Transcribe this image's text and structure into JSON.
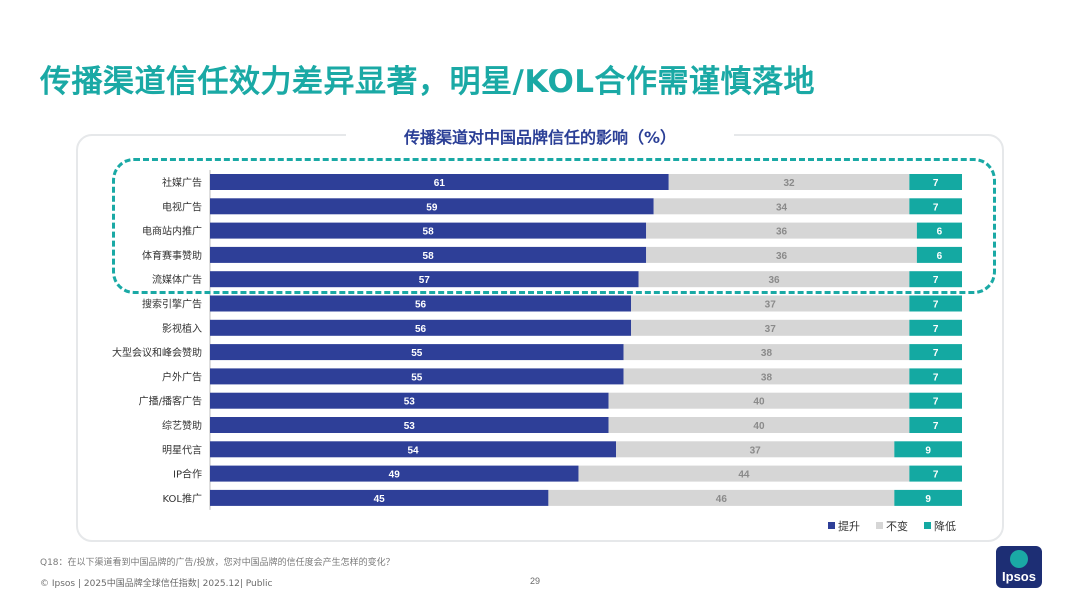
{
  "title": "传播渠道信任效力差异显著，明星/KOL合作需谨慎落地",
  "chart_data": {
    "type": "bar",
    "orientation": "horizontal",
    "stacked": true,
    "title": "传播渠道对中国品牌信任的影响（%）",
    "categories": [
      "社媒广告",
      "电视广告",
      "电商站内推广",
      "体育赛事赞助",
      "流媒体广告",
      "搜索引擎广告",
      "影视植入",
      "大型会议和峰会赞助",
      "户外广告",
      "广播/播客广告",
      "综艺赞助",
      "明星代言",
      "IP合作",
      "KOL推广"
    ],
    "series": [
      {
        "name": "提升",
        "color": "#2e3f98",
        "values": [
          61,
          59,
          58,
          58,
          57,
          56,
          56,
          55,
          55,
          53,
          53,
          54,
          49,
          45
        ]
      },
      {
        "name": "不变",
        "color": "#d6d6d6",
        "values": [
          32,
          34,
          36,
          36,
          36,
          37,
          37,
          38,
          38,
          40,
          40,
          37,
          44,
          46
        ]
      },
      {
        "name": "降低",
        "color": "#14a9a2",
        "values": [
          7,
          7,
          6,
          6,
          7,
          7,
          7,
          7,
          7,
          7,
          7,
          9,
          7,
          9
        ]
      }
    ],
    "xlim": [
      0,
      100
    ],
    "legend": "bottom-right",
    "highlighted_categories": [
      "社媒广告",
      "电视广告",
      "电商站内推广",
      "体育赛事赞助",
      "流媒体广告"
    ]
  },
  "footnote": "Q18：在以下渠道看到中国品牌的广告/投放，您对中国品牌的信任度会产生怎样的变化？",
  "footer": {
    "left": "© Ipsos | 2025中国品牌全球信任指数| 2025.12| Public",
    "page": "29"
  },
  "logo_text": "Ipsos"
}
